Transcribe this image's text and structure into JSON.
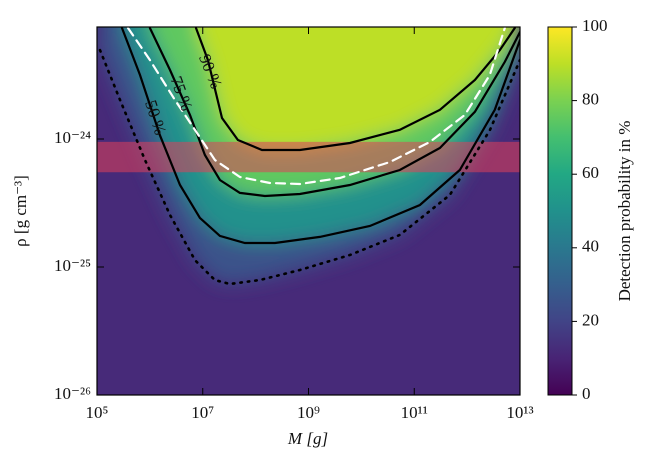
{
  "chart_data": {
    "type": "contour",
    "xlabel": "M [g]",
    "ylabel": "ρ [g cm⁻³]",
    "colorbar_label": "Detection probability in %",
    "xscale": "log",
    "yscale": "log",
    "xlim": [
      100000,
      10000000000000
    ],
    "ylim": [
      1e-26,
      7.5e-24
    ],
    "xticks": [
      {
        "value": 100000,
        "label": "10⁵"
      },
      {
        "value": 10000000,
        "label": "10⁷"
      },
      {
        "value": 1000000000,
        "label": "10⁹"
      },
      {
        "value": 100000000000,
        "label": "10¹¹"
      },
      {
        "value": 10000000000000,
        "label": "10¹³"
      }
    ],
    "yticks": [
      {
        "value": 1e-26,
        "label": "10⁻²⁶"
      },
      {
        "value": 1e-25,
        "label": "10⁻²⁵"
      },
      {
        "value": 1e-24,
        "label": "10⁻²⁴"
      }
    ],
    "clim": [
      0,
      100
    ],
    "cticks": [
      0,
      20,
      40,
      60,
      80,
      100
    ],
    "background_level": 12,
    "band": {
      "y": [
        5.5e-25,
        9.5e-25
      ],
      "color": "#e0405a"
    },
    "series": [
      {
        "level": 25,
        "style": "dotted",
        "color": "#000000",
        "x": [
          114000.0,
          272000.0,
          807000.0,
          2400000.0,
          7130000.0,
          16900000.0,
          32600000.0,
          121000000.0,
          687000000.0,
          6070000000.0,
          53500000000.0,
          471000000000.0,
          2690000000000.0,
          10000000000000.0
        ],
        "y": [
          4.95e-24,
          2.02e-24,
          6.86e-25,
          2.55e-25,
          1.13e-25,
          7.91e-26,
          7.36e-26,
          7.91e-26,
          9.48e-26,
          1.24e-25,
          1.78e-25,
          3.65e-25,
          1.17e-24,
          4.14e-24
        ]
      },
      {
        "name": "50 %",
        "level": 50,
        "style": "solid",
        "color": "#000000",
        "x": [
          297000.0,
          650000.0,
          1550000.0,
          3710000.0,
          8850000.0,
          21100000.0,
          62800000.0,
          232000000.0,
          1640000000.0,
          14500000000.0,
          128000000000.0,
          728000000000.0,
          3340000000000.0,
          10000000000000.0
        ],
        "y": [
          7.36e-24,
          3.16e-24,
          1.07e-24,
          4.37e-25,
          2.42e-25,
          1.75e-25,
          1.54e-25,
          1.54e-25,
          1.72e-25,
          2.09e-25,
          3.05e-25,
          5.73e-25,
          1.69e-24,
          5.93e-24
        ]
      },
      {
        "name": "75 %",
        "level": 75,
        "style": "solid",
        "color": "#000000",
        "x": [
          1000000.0,
          2400000.0,
          5730000.0,
          11000000.0,
          21100000.0,
          50500000.0,
          150000000.0,
          688000000.0,
          6060000000.0,
          53400000000.0,
          305000000000.0,
          1400000000000.0,
          5160000000000.0,
          10000000000000.0
        ],
        "y": [
          7.36e-24,
          3.46e-24,
          1.54e-24,
          7.5e-25,
          4.78e-25,
          3.79e-25,
          3.59e-25,
          3.72e-25,
          4.37e-25,
          5.73e-25,
          8.51e-25,
          1.63e-24,
          4e-24,
          6.85e-24
        ]
      },
      {
        "name": "90 %",
        "level": 90,
        "style": "solid",
        "color": "#000000",
        "x": [
          7440000.0,
          12500000.0,
          23100000.0,
          46300000.0,
          132000000.0,
          688000000.0,
          6060000000.0,
          53400000000.0,
          305000000000.0,
          1400000000000.0,
          4150000000000.0,
          7980000000000.0
        ],
        "y": [
          7.36e-24,
          4.14e-24,
          1.46e-24,
          9.82e-25,
          8.21e-25,
          8.21e-25,
          9.31e-25,
          1.18e-24,
          1.69e-24,
          2.89e-24,
          4.95e-24,
          7.36e-24
        ]
      },
      {
        "style": "dashed",
        "color": "#ffffff",
        "x": [
          385000.0,
          1000000.0,
          2980000.0,
          7120000.0,
          17000000.0,
          50500000.0,
          186000000.0,
          688000000.0,
          3920000000.0,
          34600000000.0,
          197000000000.0,
          904000000000.0,
          2690000000000.0,
          5160000000000.0
        ],
        "y": [
          7.36e-24,
          4.14e-24,
          2.02e-24,
          1.18e-24,
          6.86e-25,
          5.05e-25,
          4.53e-25,
          4.45e-25,
          4.96e-25,
          6.61e-25,
          9.48e-25,
          1.54e-24,
          3.16e-24,
          7.36e-24
        ]
      }
    ]
  }
}
